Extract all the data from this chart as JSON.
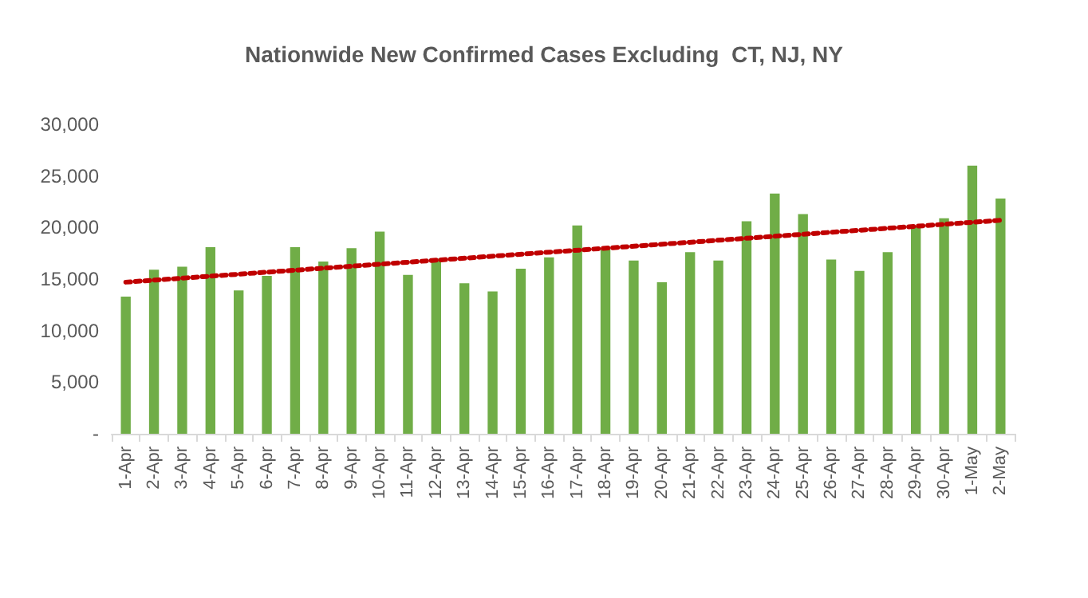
{
  "chart_data": {
    "type": "bar",
    "title": "Nationwide New Confirmed Cases Excluding  CT, NJ, NY",
    "categories": [
      "1-Apr",
      "2-Apr",
      "3-Apr",
      "4-Apr",
      "5-Apr",
      "6-Apr",
      "7-Apr",
      "8-Apr",
      "9-Apr",
      "10-Apr",
      "11-Apr",
      "12-Apr",
      "13-Apr",
      "14-Apr",
      "15-Apr",
      "16-Apr",
      "17-Apr",
      "18-Apr",
      "19-Apr",
      "20-Apr",
      "21-Apr",
      "22-Apr",
      "23-Apr",
      "24-Apr",
      "25-Apr",
      "26-Apr",
      "27-Apr",
      "28-Apr",
      "29-Apr",
      "30-Apr",
      "1-May",
      "2-May"
    ],
    "series": [
      {
        "color": "#70ad47",
        "values": [
          13300,
          15900,
          16200,
          18100,
          13900,
          15300,
          18100,
          16700,
          18000,
          19600,
          15400,
          17000,
          14600,
          13800,
          16000,
          17100,
          20200,
          17900,
          16800,
          14700,
          17600,
          16800,
          20600,
          23300,
          21300,
          16900,
          15800,
          17600,
          20100,
          20900,
          26000,
          22800
        ]
      },
      {
        "type": "line",
        "color": "#c00000",
        "line_style": "dotted",
        "marker": "none",
        "x": [
          "1-Apr",
          "2-May"
        ],
        "values": [
          14700,
          20700
        ]
      }
    ],
    "ylim": [
      0,
      30000
    ],
    "yticks": [
      {
        "value": 0,
        "label": "-"
      },
      {
        "value": 5000,
        "label": "5,000"
      },
      {
        "value": 10000,
        "label": "10,000"
      },
      {
        "value": 15000,
        "label": "15,000"
      },
      {
        "value": 20000,
        "label": "20,000"
      },
      {
        "value": 25000,
        "label": "25,000"
      },
      {
        "value": 30000,
        "label": "30,000"
      }
    ],
    "grid": false
  }
}
